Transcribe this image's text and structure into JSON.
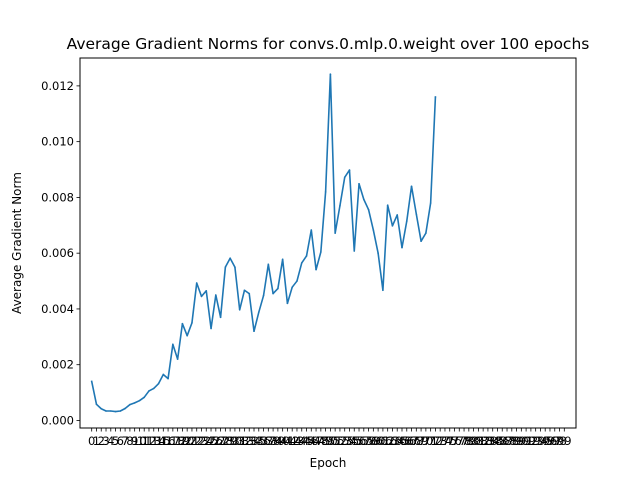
{
  "chart_data": {
    "type": "line",
    "title": "Average Gradient Norms for convs.0.mlp.0.weight over 100 epochs",
    "xlabel": "Epoch",
    "ylabel": "Average Gradient Norm",
    "xlim": [
      -2.45,
      101.45
    ],
    "ylim": [
      -0.00027,
      0.013
    ],
    "y_ticks": [
      "0.000",
      "0.002",
      "0.004",
      "0.006",
      "0.008",
      "0.010",
      "0.012"
    ],
    "x_ticks": [
      "0",
      "1",
      "2",
      "3",
      "4",
      "5",
      "6",
      "7",
      "8",
      "9",
      "10",
      "11",
      "12",
      "13",
      "14",
      "15",
      "16",
      "17",
      "18",
      "19",
      "20",
      "21",
      "22",
      "23",
      "24",
      "25",
      "26",
      "27",
      "28",
      "29",
      "30",
      "31",
      "32",
      "33",
      "34",
      "35",
      "36",
      "37",
      "38",
      "39",
      "40",
      "41",
      "42",
      "43",
      "44",
      "45",
      "46",
      "47",
      "48",
      "49",
      "50",
      "51",
      "52",
      "53",
      "54",
      "55",
      "56",
      "57",
      "58",
      "59",
      "60",
      "61",
      "62",
      "63",
      "64",
      "65",
      "66",
      "67",
      "68",
      "69",
      "70",
      "71",
      "72",
      "73",
      "74",
      "75",
      "76",
      "77",
      "78",
      "79",
      "80",
      "81",
      "82",
      "83",
      "84",
      "85",
      "86",
      "87",
      "88",
      "89",
      "90",
      "91",
      "92",
      "93",
      "94",
      "95",
      "96",
      "97",
      "98",
      "99"
    ],
    "grid": false,
    "legend": "none",
    "line_color": "#1f77b4",
    "series": [
      {
        "x": [
          0,
          1,
          2,
          3,
          4,
          5,
          6,
          7,
          8,
          9,
          10,
          11,
          12,
          13,
          14,
          15,
          16,
          17,
          18,
          19,
          20,
          21,
          22,
          23,
          24,
          25,
          26,
          27,
          28,
          29,
          30,
          31,
          32,
          33,
          34,
          35,
          36,
          37,
          38,
          39,
          40,
          41,
          42,
          43,
          44,
          45,
          46,
          47,
          48,
          49,
          50,
          51,
          52,
          53,
          54,
          55,
          56,
          57,
          58,
          59,
          60,
          61,
          62,
          63,
          64,
          65,
          66,
          67,
          68,
          69,
          70,
          71,
          72,
          73,
          74
        ],
        "values": [
          0.0014,
          0.00058,
          0.00042,
          0.00034,
          0.00034,
          0.00032,
          0.00034,
          0.00043,
          0.00057,
          0.00063,
          0.00071,
          0.00083,
          0.00106,
          0.00115,
          0.00132,
          0.00165,
          0.0015,
          0.00273,
          0.0022,
          0.00347,
          0.00304,
          0.0035,
          0.00493,
          0.00445,
          0.00465,
          0.0033,
          0.0045,
          0.0037,
          0.0055,
          0.00582,
          0.0055,
          0.00397,
          0.00467,
          0.00455,
          0.0032,
          0.00388,
          0.00448,
          0.0056,
          0.00455,
          0.00473,
          0.00578,
          0.0042,
          0.00478,
          0.005,
          0.00565,
          0.0059,
          0.00683,
          0.00541,
          0.00604,
          0.0082,
          0.01242,
          0.00672,
          0.0077,
          0.00872,
          0.00898,
          0.00608,
          0.00849,
          0.00793,
          0.00756,
          0.00683,
          0.006,
          0.00467,
          0.00772,
          0.00698,
          0.00737,
          0.0062,
          0.00715,
          0.0084,
          0.0074,
          0.00643,
          0.00672,
          0.0078,
          0.0116,
          null,
          null
        ]
      }
    ]
  }
}
